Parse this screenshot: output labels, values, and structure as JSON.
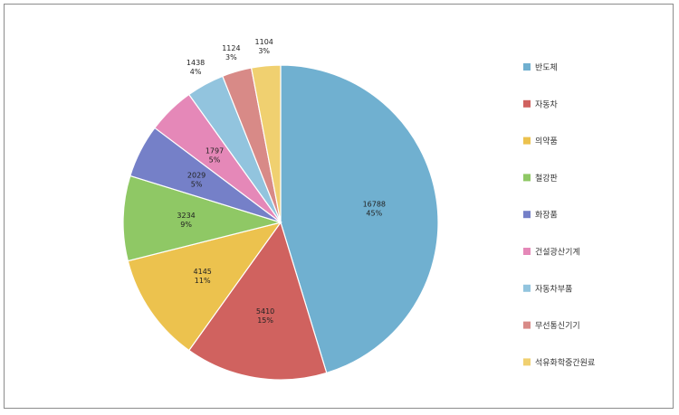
{
  "chart_data": {
    "type": "pie",
    "title": "",
    "legend_position": "right",
    "slices": [
      {
        "name": "반도체",
        "value": 16788,
        "percent": "45%",
        "color": "#70b0d0"
      },
      {
        "name": "자동차",
        "value": 5410,
        "percent": "15%",
        "color": "#d0625f"
      },
      {
        "name": "의약품",
        "value": 4145,
        "percent": "11%",
        "color": "#ecc24e"
      },
      {
        "name": "철강판",
        "value": 3234,
        "percent": "9%",
        "color": "#8fc865"
      },
      {
        "name": "화장품",
        "value": 2029,
        "percent": "5%",
        "color": "#7580c8"
      },
      {
        "name": "건설광산기계",
        "value": 1797,
        "percent": "5%",
        "color": "#e588b8"
      },
      {
        "name": "자동차부품",
        "value": 1438,
        "percent": "4%",
        "color": "#92c4de"
      },
      {
        "name": "무선통신기기",
        "value": 1124,
        "percent": "3%",
        "color": "#d88a87"
      },
      {
        "name": "석유화학중간원료",
        "value": 1104,
        "percent": "3%",
        "color": "#f0d070"
      }
    ]
  }
}
